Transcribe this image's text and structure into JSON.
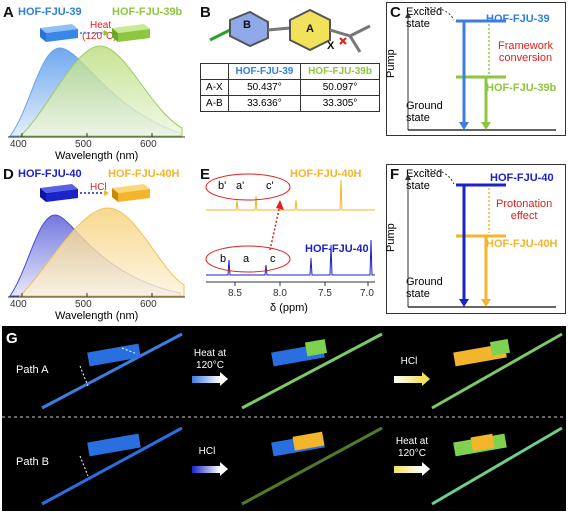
{
  "panels": {
    "A": {
      "letter": "A",
      "label1": "HOF-FJU-39",
      "label2": "HOF-FJU-39b",
      "arrow": "Heat",
      "arrow_sub": "(120°C)",
      "xlabel": "Wavelength (nm)",
      "ticks": [
        "400",
        "500",
        "600"
      ]
    },
    "B": {
      "letter": "B",
      "atom_b": "B",
      "atom_a": "A",
      "atom_x": "X",
      "table": {
        "headers": [
          "",
          "HOF-FJU-39",
          "HOF-FJU-39b"
        ],
        "rows": [
          [
            "A-X",
            "50.437°",
            "50.097°"
          ],
          [
            "A-B",
            "33.636°",
            "33.305°"
          ]
        ]
      }
    },
    "C": {
      "letter": "C",
      "excited": "Excited state",
      "ground": "Ground state",
      "pump": "Pump",
      "top_label": "HOF-FJU-39",
      "mid_label": "HOF-FJU-39b",
      "note1": "Framework",
      "note2": "conversion"
    },
    "D": {
      "letter": "D",
      "label1": "HOF-FJU-40",
      "label2": "HOF-FJU-40H",
      "arrow": "HCl",
      "xlabel": "Wavelength (nm)",
      "ticks": [
        "400",
        "500",
        "600"
      ]
    },
    "E": {
      "letter": "E",
      "top_label": "HOF-FJU-40H",
      "bottom_label": "HOF-FJU-40",
      "top_peaks": [
        "b'",
        "a'",
        "c'"
      ],
      "bottom_peaks": [
        "b",
        "a",
        "c"
      ],
      "xlabel": "δ (ppm)",
      "ticks": [
        "8.5",
        "8.0",
        "7.5",
        "7.0"
      ]
    },
    "F": {
      "letter": "F",
      "excited": "Excited state",
      "ground": "Ground state",
      "pump": "Pump",
      "top_label": "HOF-FJU-40",
      "mid_label": "HOF-FJU-40H",
      "note1": "Protonation",
      "note2": "effect"
    },
    "G": {
      "letter": "G",
      "pathA": "Path A",
      "pathB": "Path B",
      "a_step1_1": "Heat at",
      "a_step1_2": "120°C",
      "a_step2": "HCl",
      "b_step1": "HCl",
      "b_step2_1": "Heat at",
      "b_step2_2": "120°C"
    }
  },
  "colors": {
    "blue": "#3a7fe0",
    "darkblue": "#1a22c8",
    "green": "#8dc63f",
    "orange": "#f2b52b",
    "red": "#e0201b"
  }
}
